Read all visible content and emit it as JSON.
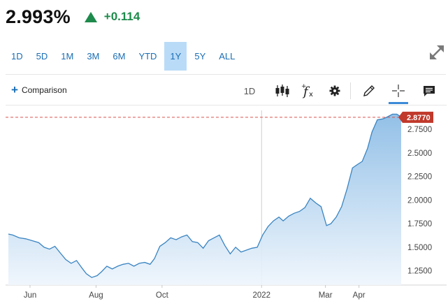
{
  "quote": {
    "price": "2.993%",
    "change": "+0.114",
    "direction": "up",
    "up_color": "#1e8a4b"
  },
  "ranges": [
    "1D",
    "5D",
    "1M",
    "3M",
    "6M",
    "YTD",
    "1Y",
    "5Y",
    "ALL"
  ],
  "active_range": "1Y",
  "toolbar": {
    "comparison_label": "Comparison",
    "interval_label": "1D",
    "icons": [
      "candlestick-icon",
      "function-icon",
      "gear-icon",
      "pencil-icon",
      "crosshair-icon",
      "comment-icon"
    ]
  },
  "accent_color": "#3c8ad8",
  "last_price_tag": "2.8770",
  "chart_data": {
    "type": "area",
    "title": "",
    "xlabel": "",
    "ylabel": "",
    "ylim": [
      1.1,
      2.95
    ],
    "y_axis_position": "right",
    "yticks": [
      "2.7500",
      "2.5000",
      "2.2500",
      "2.0000",
      "1.7500",
      "1.5000",
      "1.2500"
    ],
    "ytick_values": [
      2.75,
      2.5,
      2.25,
      2.0,
      1.75,
      1.5,
      1.25
    ],
    "xticks": [
      "Jun",
      "Aug",
      "Oct",
      "2022",
      "Mar",
      "Apr"
    ],
    "xtick_dates": [
      "2021-06-01",
      "2021-08-01",
      "2021-10-01",
      "2022-01-01",
      "2022-03-01",
      "2022-04-01"
    ],
    "reference_line": 2.877,
    "grid": "horizontal",
    "line_color": "#3a84c1",
    "series": [
      {
        "x": [
          "2021-05-12",
          "2021-05-16",
          "2021-05-22",
          "2021-05-28",
          "2021-06-03",
          "2021-06-09",
          "2021-06-14",
          "2021-06-19",
          "2021-06-24",
          "2021-06-29",
          "2021-07-04",
          "2021-07-09",
          "2021-07-14",
          "2021-07-19",
          "2021-07-23",
          "2021-07-28",
          "2021-08-02",
          "2021-08-06",
          "2021-08-11",
          "2021-08-16",
          "2021-08-21",
          "2021-08-26",
          "2021-08-31",
          "2021-09-05",
          "2021-09-10",
          "2021-09-15",
          "2021-09-20",
          "2021-09-24",
          "2021-09-29",
          "2021-10-04",
          "2021-10-09",
          "2021-10-14",
          "2021-10-19",
          "2021-10-24",
          "2021-10-29",
          "2021-11-03",
          "2021-11-08",
          "2021-11-13",
          "2021-11-18",
          "2021-11-23",
          "2021-11-28",
          "2021-12-03",
          "2021-12-08",
          "2021-12-13",
          "2021-12-18",
          "2021-12-23",
          "2021-12-28",
          "2022-01-02",
          "2022-01-07",
          "2022-01-12",
          "2022-01-17",
          "2022-01-21",
          "2022-01-26",
          "2022-01-31",
          "2022-02-05",
          "2022-02-10",
          "2022-02-15",
          "2022-02-20",
          "2022-02-25",
          "2022-03-02",
          "2022-03-06",
          "2022-03-11",
          "2022-03-16",
          "2022-03-21",
          "2022-03-26",
          "2022-03-31",
          "2022-04-04",
          "2022-04-09",
          "2022-04-13",
          "2022-04-18",
          "2022-04-23",
          "2022-04-27",
          "2022-05-02",
          "2022-05-06",
          "2022-05-10"
        ],
        "values": [
          1.64,
          1.63,
          1.6,
          1.59,
          1.57,
          1.55,
          1.5,
          1.48,
          1.51,
          1.44,
          1.37,
          1.33,
          1.36,
          1.28,
          1.22,
          1.18,
          1.2,
          1.24,
          1.3,
          1.27,
          1.3,
          1.32,
          1.33,
          1.3,
          1.33,
          1.34,
          1.32,
          1.38,
          1.51,
          1.55,
          1.6,
          1.58,
          1.61,
          1.63,
          1.56,
          1.55,
          1.49,
          1.57,
          1.6,
          1.63,
          1.52,
          1.43,
          1.5,
          1.45,
          1.47,
          1.49,
          1.5,
          1.63,
          1.72,
          1.78,
          1.82,
          1.78,
          1.83,
          1.86,
          1.88,
          1.92,
          2.02,
          1.97,
          1.93,
          1.73,
          1.75,
          1.82,
          1.93,
          2.12,
          2.34,
          2.38,
          2.41,
          2.55,
          2.72,
          2.85,
          2.86,
          2.88,
          2.91,
          2.91,
          2.88
        ]
      }
    ]
  }
}
